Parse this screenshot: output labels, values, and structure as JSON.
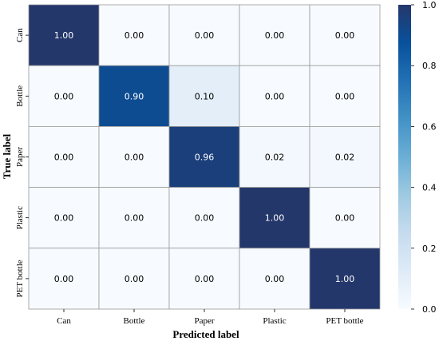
{
  "chart_data": {
    "type": "heatmap",
    "title": "",
    "xlabel": "Predicted label",
    "ylabel": "True label",
    "x_categories": [
      "Can",
      "Bottle",
      "Paper",
      "Plastic",
      "PET bottle"
    ],
    "y_categories": [
      "Can",
      "Bottle",
      "Paper",
      "Plastic",
      "PET bottle"
    ],
    "values": [
      [
        1.0,
        0.0,
        0.0,
        0.0,
        0.0
      ],
      [
        0.0,
        0.9,
        0.1,
        0.0,
        0.0
      ],
      [
        0.0,
        0.0,
        0.96,
        0.02,
        0.02
      ],
      [
        0.0,
        0.0,
        0.0,
        1.0,
        0.0
      ],
      [
        0.0,
        0.0,
        0.0,
        0.0,
        1.0
      ]
    ],
    "value_format": "0.00",
    "colorbar": {
      "range": [
        0.0,
        1.0
      ],
      "ticks": [
        "0.0",
        "0.2",
        "0.4",
        "0.6",
        "0.8",
        "1.0"
      ],
      "colormap": "Blues"
    },
    "colors": {
      "low": "#f7fbff",
      "high": "#24376b",
      "cell_border": "#9a9a9a",
      "text_light": "#ffffff",
      "text_dark": "#000000"
    },
    "grid": true,
    "legend": "colorbar-right"
  }
}
